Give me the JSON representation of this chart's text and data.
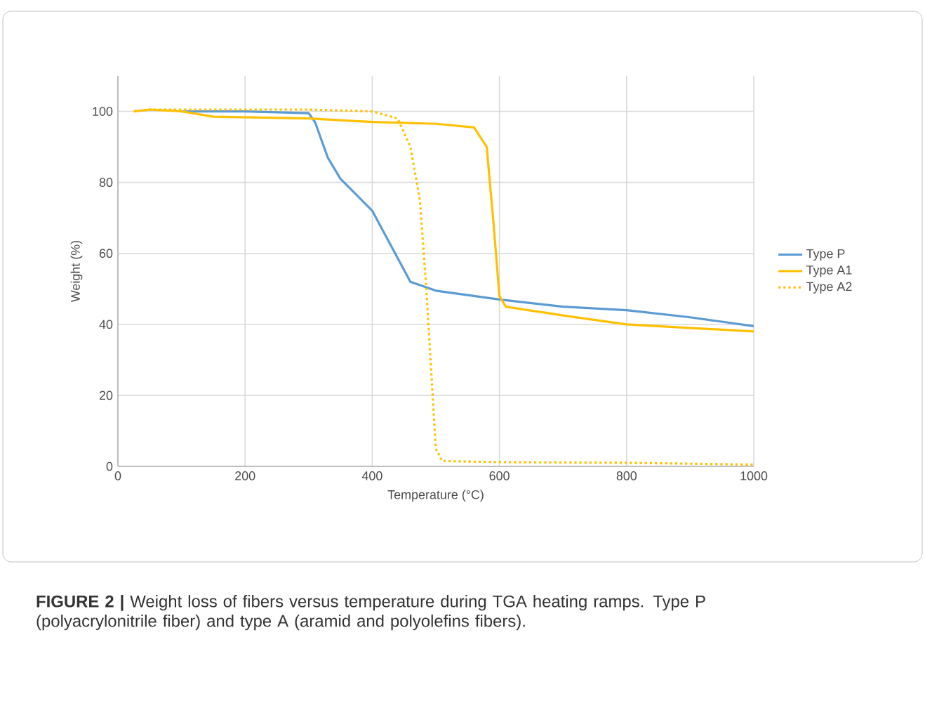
{
  "chart_data": {
    "type": "line",
    "xlabel": "Temperature (°C)",
    "ylabel": "Weight (%)",
    "xlim": [
      0,
      1000
    ],
    "ylim": [
      0,
      110
    ],
    "xticks": [
      0,
      200,
      400,
      600,
      800,
      1000
    ],
    "yticks": [
      0,
      20,
      40,
      60,
      80,
      100
    ],
    "grid": true,
    "legend": "right",
    "marker": "none",
    "series": [
      {
        "name": "Type P",
        "color": "#5b9bd5",
        "line_style": "solid",
        "x": [
          100,
          200,
          300,
          310,
          330,
          350,
          400,
          430,
          460,
          500,
          600,
          700,
          800,
          900,
          1000
        ],
        "values": [
          100,
          100,
          99.5,
          97,
          87,
          81,
          72,
          62,
          52,
          49.5,
          47,
          45,
          44,
          42,
          39.5
        ]
      },
      {
        "name": "Type A1",
        "color": "#ffc000",
        "line_style": "solid",
        "x": [
          25,
          50,
          100,
          150,
          300,
          400,
          500,
          560,
          580,
          590,
          600,
          610,
          700,
          800,
          900,
          1000
        ],
        "values": [
          100,
          100.5,
          100,
          98.5,
          98,
          97,
          96.5,
          95.5,
          90,
          70,
          48,
          45,
          42.5,
          40,
          39,
          38
        ]
      },
      {
        "name": "Type A2",
        "color": "#ffc000",
        "line_style": "dotted",
        "x": [
          25,
          50,
          300,
          400,
          440,
          460,
          475,
          485,
          495,
          500,
          510,
          600,
          800,
          1000
        ],
        "values": [
          100,
          100.5,
          100.5,
          100,
          98,
          90,
          75,
          50,
          20,
          5,
          1.5,
          1.2,
          1,
          0.5
        ]
      }
    ],
    "annotations": [
      "**FIGURE 2 |** Weight loss of fibers versus temperature during TGA heating ramps. Type P (polyacrylonitrile fiber) and type A (aramid and polyolefins fibers)."
    ]
  }
}
